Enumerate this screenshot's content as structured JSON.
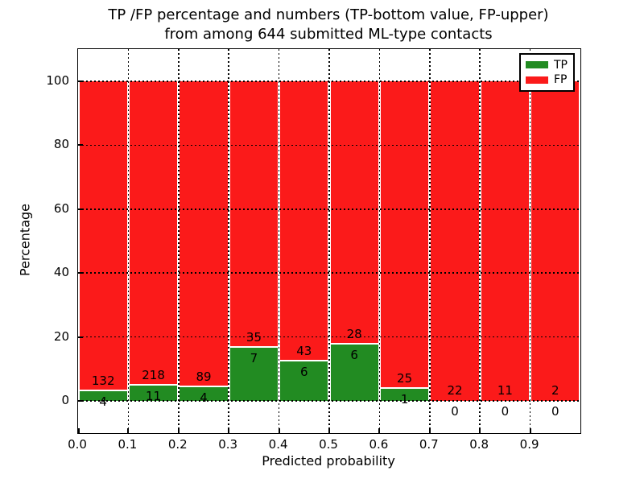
{
  "title": {
    "line1": "TP /FP percentage and numbers (TP-bottom value, FP-upper)",
    "line2": "from among 644 submitted ML-type contacts"
  },
  "axes": {
    "xlabel": "Predicted probability",
    "ylabel": "Percentage"
  },
  "legend": {
    "items": [
      {
        "label": "TP",
        "color": "#228b22"
      },
      {
        "label": "FP",
        "color": "#fb1a1a"
      }
    ]
  },
  "colors": {
    "tp_green": "#228b22",
    "fp_red": "#fb1a1a",
    "bar_edge": "#ffffff",
    "grid": "#000000"
  },
  "chart_data": {
    "type": "bar",
    "stacked": true,
    "normalized_to_percent": true,
    "title": "TP /FP percentage and numbers (TP-bottom value, FP-upper) from among 644 submitted ML-type contacts",
    "xlabel": "Predicted probability",
    "ylabel": "Percentage",
    "xlim": [
      0.0,
      1.0
    ],
    "ylim": [
      -10,
      110
    ],
    "yticks": [
      0,
      20,
      40,
      60,
      80,
      100
    ],
    "xtick_labels": [
      "0.0",
      "0.1",
      "0.2",
      "0.3",
      "0.4",
      "0.5",
      "0.6",
      "0.7",
      "0.8",
      "0.9"
    ],
    "grid": "dotted, drawn above bars",
    "legend_position": "upper right",
    "total_contacts": 644,
    "bin_width": 0.1,
    "bins": [
      {
        "x_start": 0.0,
        "tp_count": 4,
        "fp_count": 132,
        "tp_percent": 2.94,
        "fp_percent": 97.06
      },
      {
        "x_start": 0.1,
        "tp_count": 11,
        "fp_count": 218,
        "tp_percent": 4.8,
        "fp_percent": 95.2
      },
      {
        "x_start": 0.2,
        "tp_count": 4,
        "fp_count": 89,
        "tp_percent": 4.3,
        "fp_percent": 95.7
      },
      {
        "x_start": 0.3,
        "tp_count": 7,
        "fp_count": 35,
        "tp_percent": 16.67,
        "fp_percent": 83.33
      },
      {
        "x_start": 0.4,
        "tp_count": 6,
        "fp_count": 43,
        "tp_percent": 12.24,
        "fp_percent": 87.76
      },
      {
        "x_start": 0.5,
        "tp_count": 6,
        "fp_count": 28,
        "tp_percent": 17.65,
        "fp_percent": 82.35
      },
      {
        "x_start": 0.6,
        "tp_count": 1,
        "fp_count": 25,
        "tp_percent": 3.85,
        "fp_percent": 96.15
      },
      {
        "x_start": 0.7,
        "tp_count": 0,
        "fp_count": 22,
        "tp_percent": 0,
        "fp_percent": 100
      },
      {
        "x_start": 0.8,
        "tp_count": 0,
        "fp_count": 11,
        "tp_percent": 0,
        "fp_percent": 100
      },
      {
        "x_start": 0.9,
        "tp_count": 0,
        "fp_count": 2,
        "tp_percent": 0,
        "fp_percent": 100
      }
    ],
    "series": [
      {
        "name": "TP",
        "color": "#228b22",
        "values": [
          4,
          11,
          4,
          7,
          6,
          6,
          1,
          0,
          0,
          0
        ]
      },
      {
        "name": "FP",
        "color": "#fb1a1a",
        "values": [
          132,
          218,
          89,
          35,
          43,
          28,
          25,
          22,
          11,
          2
        ]
      }
    ]
  }
}
